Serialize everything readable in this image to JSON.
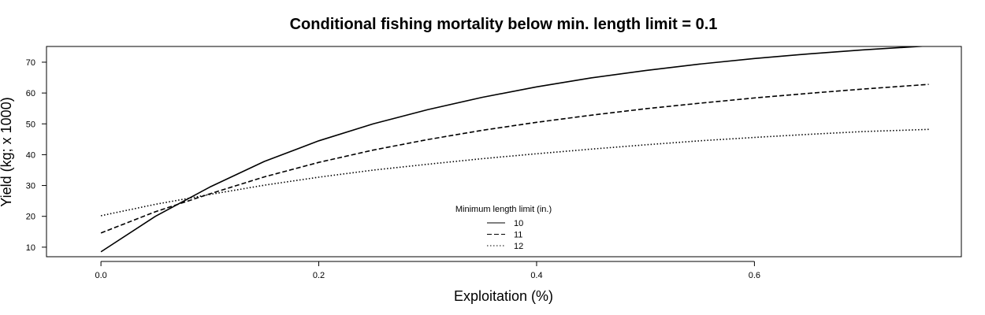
{
  "chart_data": {
    "type": "line",
    "title": "Conditional fishing mortality below min. length limit = 0.1",
    "xlabel": "Exploitation (%)",
    "ylabel": "Yield (kg; x 1000)",
    "xlim": [
      -0.05,
      0.79
    ],
    "ylim": [
      6.9,
      75.1
    ],
    "x_ticks": [
      0.0,
      0.2,
      0.4,
      0.6
    ],
    "x_tick_labels": [
      "0.0",
      "0.2",
      "0.4",
      "0.6"
    ],
    "y_ticks": [
      10,
      20,
      30,
      40,
      50,
      60,
      70
    ],
    "y_tick_labels": [
      "10",
      "20",
      "30",
      "40",
      "50",
      "60",
      "70"
    ],
    "grid": false,
    "legend": {
      "title": "Minimum length limit (in.)",
      "position": "bottom-center"
    },
    "x": [
      0.0,
      0.05,
      0.1,
      0.15,
      0.2,
      0.25,
      0.3,
      0.35,
      0.4,
      0.45,
      0.5,
      0.55,
      0.6,
      0.65,
      0.7,
      0.76
    ],
    "series": [
      {
        "name": "10",
        "line_style": "solid",
        "values": [
          8.5,
          20.0,
          29.5,
          37.8,
          44.5,
          50.0,
          54.6,
          58.6,
          62.0,
          64.9,
          67.3,
          69.4,
          71.2,
          72.7,
          74.0,
          75.3
        ]
      },
      {
        "name": "11",
        "line_style": "dashed",
        "values": [
          14.6,
          21.5,
          27.3,
          32.8,
          37.5,
          41.5,
          44.9,
          47.9,
          50.5,
          52.8,
          54.9,
          56.7,
          58.4,
          59.9,
          61.3,
          62.8
        ]
      },
      {
        "name": "12",
        "line_style": "dotted",
        "values": [
          20.2,
          23.9,
          27.1,
          30.1,
          32.7,
          35.0,
          36.9,
          38.7,
          40.3,
          41.8,
          43.2,
          44.5,
          45.6,
          46.6,
          47.5,
          48.2
        ]
      }
    ],
    "colors": {
      "line": "#000000",
      "frame": "#000000",
      "background": "#ffffff"
    }
  }
}
